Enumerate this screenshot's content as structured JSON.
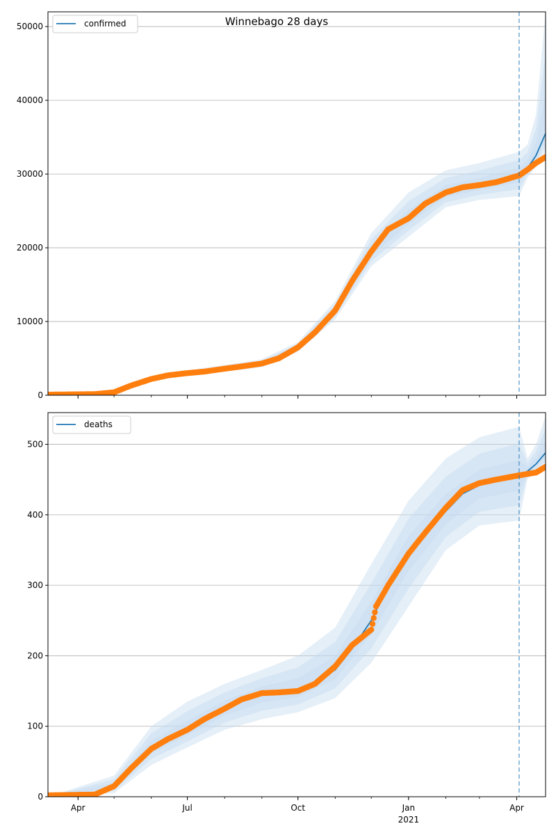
{
  "chart_data": {
    "title": "Winnebago 28 days",
    "colors": {
      "model": "#1f77b4",
      "observed": "#ff7f0e",
      "band": "#c6dbef",
      "grid": "#b0b0b0"
    },
    "x_axis": {
      "type": "date",
      "range": [
        "2020-03-07",
        "2021-04-25"
      ],
      "ticks": [
        {
          "date": "2020-04-01",
          "label": "Apr",
          "sublabel": ""
        },
        {
          "date": "2020-07-01",
          "label": "Jul",
          "sublabel": ""
        },
        {
          "date": "2020-10-01",
          "label": "Oct",
          "sublabel": ""
        },
        {
          "date": "2021-01-01",
          "label": "Jan",
          "sublabel": "2021"
        },
        {
          "date": "2021-04-01",
          "label": "Apr",
          "sublabel": ""
        }
      ],
      "forecast_start": "2021-04-03"
    },
    "panels": [
      {
        "type": "line",
        "series_name": "confirmed",
        "legend": "upper-left",
        "grid": "horizontal",
        "ylim": [
          0,
          52000
        ],
        "yticks": [
          0,
          10000,
          20000,
          30000,
          40000,
          50000
        ],
        "model_points": [
          [
            "2020-03-07",
            0
          ],
          [
            "2020-04-15",
            120
          ],
          [
            "2020-05-01",
            400
          ],
          [
            "2020-05-15",
            1300
          ],
          [
            "2020-06-01",
            2200
          ],
          [
            "2020-06-15",
            2700
          ],
          [
            "2020-07-01",
            3000
          ],
          [
            "2020-07-15",
            3200
          ],
          [
            "2020-08-01",
            3600
          ],
          [
            "2020-08-15",
            3900
          ],
          [
            "2020-09-01",
            4300
          ],
          [
            "2020-09-15",
            5000
          ],
          [
            "2020-10-01",
            6500
          ],
          [
            "2020-10-15",
            8500
          ],
          [
            "2020-11-01",
            11500
          ],
          [
            "2020-11-15",
            15500
          ],
          [
            "2020-12-01",
            19500
          ],
          [
            "2020-12-15",
            22500
          ],
          [
            "2021-01-01",
            24000
          ],
          [
            "2021-01-15",
            26000
          ],
          [
            "2021-02-01",
            27500
          ],
          [
            "2021-02-15",
            28200
          ],
          [
            "2021-03-01",
            28500
          ],
          [
            "2021-03-15",
            28900
          ],
          [
            "2021-04-03",
            29800
          ],
          [
            "2021-04-10",
            30800
          ],
          [
            "2021-04-17",
            32500
          ],
          [
            "2021-04-25",
            35500
          ]
        ],
        "band_upper": [
          [
            "2020-03-07",
            0
          ],
          [
            "2020-05-01",
            600
          ],
          [
            "2020-06-01",
            2600
          ],
          [
            "2020-07-01",
            3400
          ],
          [
            "2020-08-01",
            4100
          ],
          [
            "2020-09-01",
            4900
          ],
          [
            "2020-10-01",
            7200
          ],
          [
            "2020-11-01",
            12800
          ],
          [
            "2020-12-01",
            22000
          ],
          [
            "2021-01-01",
            27500
          ],
          [
            "2021-02-01",
            30500
          ],
          [
            "2021-03-01",
            31500
          ],
          [
            "2021-04-03",
            33000
          ],
          [
            "2021-04-10",
            34000
          ],
          [
            "2021-04-17",
            38000
          ],
          [
            "2021-04-25",
            52000
          ]
        ],
        "band_lower": [
          [
            "2020-03-07",
            0
          ],
          [
            "2020-05-01",
            250
          ],
          [
            "2020-06-01",
            1900
          ],
          [
            "2020-07-01",
            2700
          ],
          [
            "2020-08-01",
            3200
          ],
          [
            "2020-09-01",
            3800
          ],
          [
            "2020-10-01",
            5900
          ],
          [
            "2020-11-01",
            10300
          ],
          [
            "2020-12-01",
            17500
          ],
          [
            "2021-01-01",
            21500
          ],
          [
            "2021-02-01",
            25500
          ],
          [
            "2021-03-01",
            26500
          ],
          [
            "2021-04-03",
            27000
          ],
          [
            "2021-04-10",
            29500
          ],
          [
            "2021-04-17",
            31000
          ],
          [
            "2021-04-25",
            33000
          ]
        ],
        "observed_points": [
          [
            "2020-03-07",
            80
          ],
          [
            "2020-04-15",
            150
          ],
          [
            "2020-05-01",
            400
          ],
          [
            "2020-05-15",
            1300
          ],
          [
            "2020-06-01",
            2200
          ],
          [
            "2020-06-15",
            2700
          ],
          [
            "2020-07-01",
            3000
          ],
          [
            "2020-07-15",
            3200
          ],
          [
            "2020-08-01",
            3600
          ],
          [
            "2020-08-15",
            3900
          ],
          [
            "2020-09-01",
            4300
          ],
          [
            "2020-09-15",
            5000
          ],
          [
            "2020-10-01",
            6500
          ],
          [
            "2020-10-15",
            8500
          ],
          [
            "2020-11-01",
            11500
          ],
          [
            "2020-11-15",
            15500
          ],
          [
            "2020-12-01",
            19500
          ],
          [
            "2020-12-15",
            22500
          ],
          [
            "2021-01-01",
            24000
          ],
          [
            "2021-01-15",
            26000
          ],
          [
            "2021-02-01",
            27500
          ],
          [
            "2021-02-15",
            28200
          ],
          [
            "2021-03-01",
            28500
          ],
          [
            "2021-03-15",
            28900
          ],
          [
            "2021-04-03",
            29800
          ],
          [
            "2021-04-10",
            30600
          ],
          [
            "2021-04-17",
            31500
          ],
          [
            "2021-04-25",
            32300
          ]
        ]
      },
      {
        "type": "line",
        "series_name": "deaths",
        "legend": "upper-left",
        "grid": "horizontal",
        "ylim": [
          0,
          545
        ],
        "yticks": [
          0,
          100,
          200,
          300,
          400,
          500
        ],
        "model_points": [
          [
            "2020-03-07",
            0
          ],
          [
            "2020-04-15",
            2
          ],
          [
            "2020-05-01",
            15
          ],
          [
            "2020-05-15",
            40
          ],
          [
            "2020-06-01",
            70
          ],
          [
            "2020-06-15",
            85
          ],
          [
            "2020-07-01",
            95
          ],
          [
            "2020-07-15",
            110
          ],
          [
            "2020-08-01",
            125
          ],
          [
            "2020-08-15",
            138
          ],
          [
            "2020-09-01",
            145
          ],
          [
            "2020-09-15",
            148
          ],
          [
            "2020-10-01",
            152
          ],
          [
            "2020-10-15",
            162
          ],
          [
            "2020-11-01",
            180
          ],
          [
            "2020-11-15",
            210
          ],
          [
            "2020-12-01",
            250
          ],
          [
            "2020-12-15",
            300
          ],
          [
            "2021-01-01",
            345
          ],
          [
            "2021-01-15",
            375
          ],
          [
            "2021-02-01",
            405
          ],
          [
            "2021-02-15",
            430
          ],
          [
            "2021-03-01",
            442
          ],
          [
            "2021-03-15",
            450
          ],
          [
            "2021-04-03",
            455
          ],
          [
            "2021-04-10",
            462
          ],
          [
            "2021-04-17",
            472
          ],
          [
            "2021-04-25",
            488
          ]
        ],
        "band_upper": [
          [
            "2020-03-07",
            0
          ],
          [
            "2020-05-01",
            30
          ],
          [
            "2020-06-01",
            100
          ],
          [
            "2020-07-01",
            135
          ],
          [
            "2020-08-01",
            160
          ],
          [
            "2020-09-01",
            180
          ],
          [
            "2020-10-01",
            200
          ],
          [
            "2020-11-01",
            240
          ],
          [
            "2020-12-01",
            330
          ],
          [
            "2021-01-01",
            420
          ],
          [
            "2021-02-01",
            480
          ],
          [
            "2021-03-01",
            510
          ],
          [
            "2021-04-03",
            525
          ],
          [
            "2021-04-10",
            480
          ],
          [
            "2021-04-17",
            500
          ],
          [
            "2021-04-25",
            540
          ]
        ],
        "band_lower": [
          [
            "2020-03-07",
            0
          ],
          [
            "2020-05-01",
            5
          ],
          [
            "2020-06-01",
            45
          ],
          [
            "2020-07-01",
            70
          ],
          [
            "2020-08-01",
            95
          ],
          [
            "2020-09-01",
            110
          ],
          [
            "2020-10-01",
            120
          ],
          [
            "2020-11-01",
            140
          ],
          [
            "2020-12-01",
            190
          ],
          [
            "2021-01-01",
            270
          ],
          [
            "2021-02-01",
            350
          ],
          [
            "2021-03-01",
            385
          ],
          [
            "2021-04-03",
            392
          ],
          [
            "2021-04-10",
            452
          ],
          [
            "2021-04-17",
            458
          ],
          [
            "2021-04-25",
            470
          ]
        ],
        "observed_points": [
          [
            "2020-03-07",
            2
          ],
          [
            "2020-04-15",
            3
          ],
          [
            "2020-05-01",
            15
          ],
          [
            "2020-05-15",
            40
          ],
          [
            "2020-06-01",
            68
          ],
          [
            "2020-06-15",
            82
          ],
          [
            "2020-07-01",
            95
          ],
          [
            "2020-07-15",
            110
          ],
          [
            "2020-08-01",
            125
          ],
          [
            "2020-08-15",
            138
          ],
          [
            "2020-09-01",
            147
          ],
          [
            "2020-09-15",
            148
          ],
          [
            "2020-10-01",
            150
          ],
          [
            "2020-10-15",
            160
          ],
          [
            "2020-11-01",
            185
          ],
          [
            "2020-11-15",
            215
          ],
          [
            "2020-12-01",
            237
          ],
          [
            "2020-12-05",
            270
          ],
          [
            "2020-12-15",
            300
          ],
          [
            "2021-01-01",
            345
          ],
          [
            "2021-01-15",
            375
          ],
          [
            "2021-02-01",
            410
          ],
          [
            "2021-02-15",
            435
          ],
          [
            "2021-03-01",
            445
          ],
          [
            "2021-03-15",
            450
          ],
          [
            "2021-04-03",
            456
          ],
          [
            "2021-04-10",
            458
          ],
          [
            "2021-04-17",
            460
          ],
          [
            "2021-04-25",
            468
          ]
        ]
      }
    ]
  }
}
